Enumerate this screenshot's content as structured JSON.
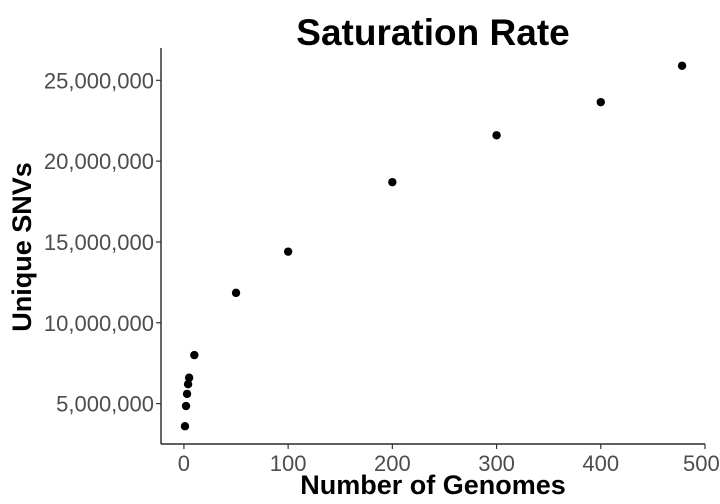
{
  "chart_data": {
    "type": "scatter",
    "title": "Saturation Rate",
    "xlabel": "Number of Genomes",
    "ylabel": "Unique SNVs",
    "xlim": [
      -22,
      500
    ],
    "ylim": [
      2500000,
      27000000
    ],
    "x_ticks": [
      0,
      100,
      200,
      300,
      400,
      500
    ],
    "y_ticks": [
      5000000,
      10000000,
      15000000,
      20000000,
      25000000
    ],
    "x_tick_labels": [
      "0",
      "100",
      "200",
      "300",
      "400",
      "500"
    ],
    "y_tick_labels": [
      "5,000,000",
      "10,000,000",
      "15,000,000",
      "20,000,000",
      "25,000,000"
    ],
    "points": [
      {
        "x": 1,
        "y": 3600000
      },
      {
        "x": 2,
        "y": 4850000
      },
      {
        "x": 3,
        "y": 5600000
      },
      {
        "x": 4,
        "y": 6200000
      },
      {
        "x": 5,
        "y": 6600000
      },
      {
        "x": 10,
        "y": 8000000
      },
      {
        "x": 50,
        "y": 11850000
      },
      {
        "x": 100,
        "y": 14400000
      },
      {
        "x": 200,
        "y": 18700000
      },
      {
        "x": 300,
        "y": 21600000
      },
      {
        "x": 400,
        "y": 23650000
      },
      {
        "x": 478,
        "y": 25900000
      }
    ],
    "grid": false,
    "legend": "none",
    "point_color": "#000000"
  }
}
